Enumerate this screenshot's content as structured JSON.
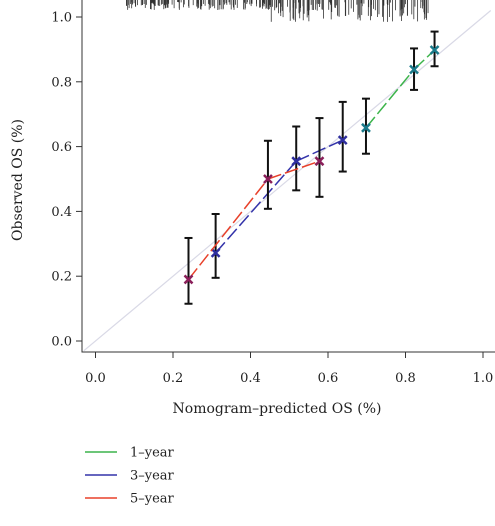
{
  "chart_data": {
    "type": "scatter",
    "title": "",
    "xlabel": "Nomogram–predicted OS (%)",
    "ylabel": "Observed OS (%)",
    "xlim": [
      -0.03,
      1.03
    ],
    "ylim": [
      -0.03,
      1.03
    ],
    "x_ticks": [
      "0.0",
      "0.2",
      "0.4",
      "0.6",
      "0.8",
      "1.0"
    ],
    "y_ticks": [
      "0.0",
      "0.2",
      "0.4",
      "0.6",
      "0.8",
      "1.0"
    ],
    "reference_line": {
      "from": [
        0,
        0
      ],
      "to": [
        1,
        1
      ],
      "color": "#d9d9e6"
    },
    "rug_color": "#333333",
    "legend_position": "bottom-left",
    "series": [
      {
        "name": "1–year",
        "color": "#3cb44b",
        "marker_color": "#1a7a8a",
        "points": [
          {
            "x": 0.698,
            "y": 0.658,
            "lower": 0.578,
            "upper": 0.748
          },
          {
            "x": 0.822,
            "y": 0.838,
            "lower": 0.775,
            "upper": 0.903
          },
          {
            "x": 0.875,
            "y": 0.898,
            "lower": 0.848,
            "upper": 0.955
          }
        ]
      },
      {
        "name": "3–year",
        "color": "#3333aa",
        "marker_color": "#2e2e9e",
        "points": [
          {
            "x": 0.31,
            "y": 0.272,
            "lower": 0.195,
            "upper": 0.392
          },
          {
            "x": 0.518,
            "y": 0.555,
            "lower": 0.465,
            "upper": 0.662
          },
          {
            "x": 0.638,
            "y": 0.62,
            "lower": 0.523,
            "upper": 0.738
          }
        ]
      },
      {
        "name": "5–year",
        "color": "#e8402a",
        "marker_color": "#8a1f5a",
        "points": [
          {
            "x": 0.24,
            "y": 0.19,
            "lower": 0.115,
            "upper": 0.318
          },
          {
            "x": 0.445,
            "y": 0.5,
            "lower": 0.408,
            "upper": 0.618
          },
          {
            "x": 0.578,
            "y": 0.555,
            "lower": 0.445,
            "upper": 0.688
          }
        ]
      }
    ]
  }
}
